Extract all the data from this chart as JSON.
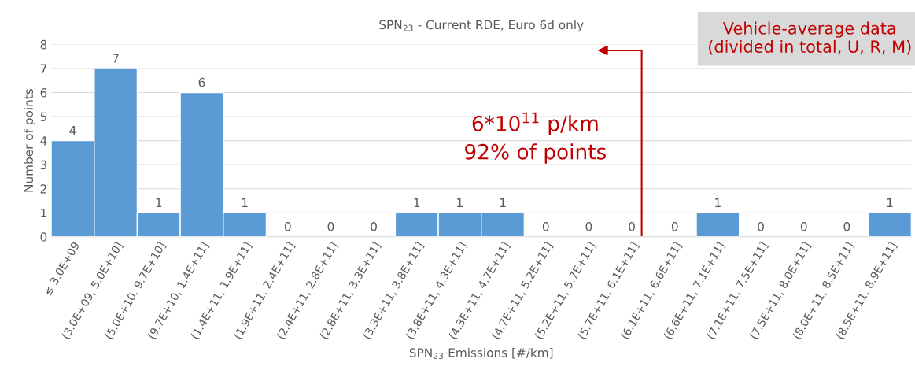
{
  "chart_data": {
    "type": "bar",
    "title": "SPN$_{23}$ - Current RDE, Euro 6d only",
    "xlabel": "SPN$_{23}$ Emissions [#/km]",
    "ylabel": "Number of points",
    "categories": [
      "≤ 3.0E+09",
      "(3.0E+09, 5.0E+10]",
      "(5.0E+10, 9.7E+10]",
      "(9.7E+10, 1.4E+11]",
      "(1.4E+11, 1.9E+11]",
      "(1.9E+11, 2.4E+11]",
      "(2.4E+11, 2.8E+11]",
      "(2.8E+11, 3.3E+11]",
      "(3.3E+11, 3.8E+11]",
      "(3.8E+11, 4.3E+11]",
      "(4.3E+11, 4.7E+11]",
      "(4.7E+11, 5.2E+11]",
      "(5.2E+11, 5.7E+11]",
      "(5.7E+11, 6.1E+11]",
      "(6.1E+11, 6.6E+11]",
      "(6.6E+11, 7.1E+11]",
      "(7.1E+11, 7.5E+11]",
      "(7.5E+11, 8.0E+11]",
      "(8.0E+11, 8.5E+11]",
      "(8.5E+11, 8.9E+11]"
    ],
    "values": [
      4,
      7,
      1,
      6,
      1,
      0,
      0,
      0,
      1,
      1,
      1,
      0,
      0,
      0,
      0,
      1,
      0,
      0,
      0,
      1
    ],
    "color": "#5b9bd5",
    "ylim": [
      0,
      8
    ],
    "yticks": [
      0,
      1,
      2,
      3,
      4,
      5,
      6,
      7,
      8
    ],
    "grid": "y",
    "data_labels": true,
    "annotations": [
      "Vehicle-average data\n(divided in total, U, R, M)",
      "6*10$^{11}$ p/km",
      "92% of points"
    ]
  }
}
